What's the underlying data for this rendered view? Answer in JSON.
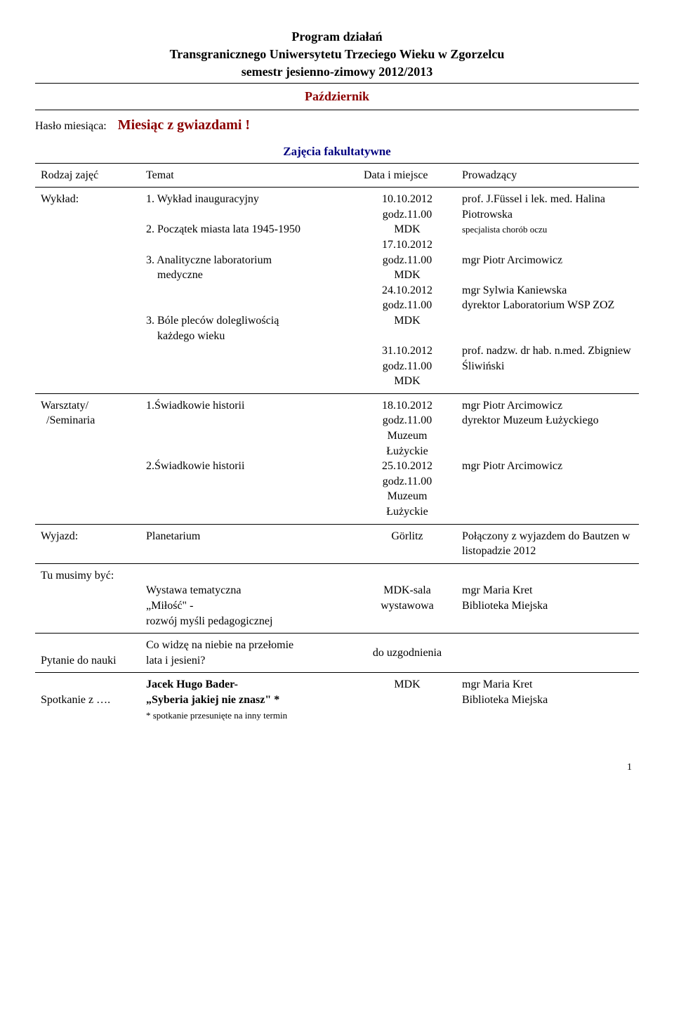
{
  "header": {
    "line1": "Program  działań",
    "line2": "Transgranicznego Uniwersytetu Trzeciego Wieku w Zgorzelcu",
    "line3": "semestr  jesienno-zimowy 2012/2013",
    "month": "Październik"
  },
  "haslo": {
    "label": "Hasło miesiąca:",
    "value": "Miesiąc z gwiazdami !"
  },
  "zajecia_label": "Zajęcia fakultatywne",
  "columns": {
    "c1": "Rodzaj zajęć",
    "c2": "Temat",
    "c3": "Data i miejsce",
    "c4": "Prowadzący"
  },
  "wyklad": {
    "label": "Wykład:",
    "items": [
      {
        "topic": "1. Wykład inauguracyjny",
        "date": "10.10.2012",
        "time": "godz.11.00",
        "place": "MDK"
      },
      {
        "topic": "2. Początek miasta lata 1945-1950",
        "date": "17.10.2012",
        "time": "godz.11.00",
        "place": "MDK"
      },
      {
        "topic": "3. Analityczne laboratorium",
        "topic2": "    medyczne",
        "date": "24.10.2012",
        "time": "godz.11.00",
        "place": "MDK"
      },
      {
        "topic": "3. Bóle pleców dolegliwością",
        "topic2": "    każdego wieku",
        "date": "31.10.2012",
        "time": "godz.11.00",
        "place": "MDK"
      }
    ],
    "prow1": "prof. J.Füssel   i lek. med. Halina Piotrowska",
    "prow1_small": "specjalista chorób oczu",
    "prow2": "mgr Piotr Arcimowicz",
    "prow3a": "mgr Sylwia Kaniewska",
    "prow3b": "dyrektor Laboratorium WSP ZOZ",
    "prow4": "prof. nadzw. dr hab. n.med. Zbigniew Śliwiński"
  },
  "warsztaty": {
    "label": "Warsztaty/",
    "label2": "  /Seminaria",
    "items": [
      {
        "topic": "1.Świadkowie historii",
        "date": "18.10.2012",
        "time": "godz.11.00",
        "place1": "Muzeum",
        "place2": "Łużyckie"
      },
      {
        "topic": "2.Świadkowie historii",
        "date": "25.10.2012",
        "time": "godz.11.00",
        "place1": "Muzeum",
        "place2": "Łużyckie"
      }
    ],
    "prow1a": "mgr Piotr Arcimowicz",
    "prow1b": "dyrektor Muzeum Łużyckiego",
    "prow2": "mgr Piotr Arcimowicz"
  },
  "wyjazd": {
    "label": "Wyjazd:",
    "topic": "Planetarium",
    "place": "Görlitz",
    "prow_small": "Połączony z wyjazdem do Bautzen w listopadzie 2012"
  },
  "tumusimy": {
    "label": "Tu musimy być:",
    "topic1": "Wystawa tematyczna",
    "topic2": "„Miłość\" -",
    "topic3": "rozwój myśli pedagogicznej",
    "place1": "MDK-sala",
    "place2": "wystawowa",
    "prow1": "mgr Maria Kret",
    "prow2": "Biblioteka Miejska"
  },
  "pytanie": {
    "label": "Pytanie do nauki",
    "topic1": "Co widzę na niebie na przełomie",
    "topic2": "lata i jesieni?",
    "place": "do uzgodnienia"
  },
  "spotkanie": {
    "label": "Spotkanie z ….",
    "topic1": "Jacek Hugo Bader-",
    "topic2": "„Syberia jakiej nie znasz\" *",
    "note": "* spotkanie przesunięte na inny termin",
    "place": "MDK",
    "prow1": "mgr Maria Kret",
    "prow2": "Biblioteka Miejska"
  },
  "page_number": "1"
}
